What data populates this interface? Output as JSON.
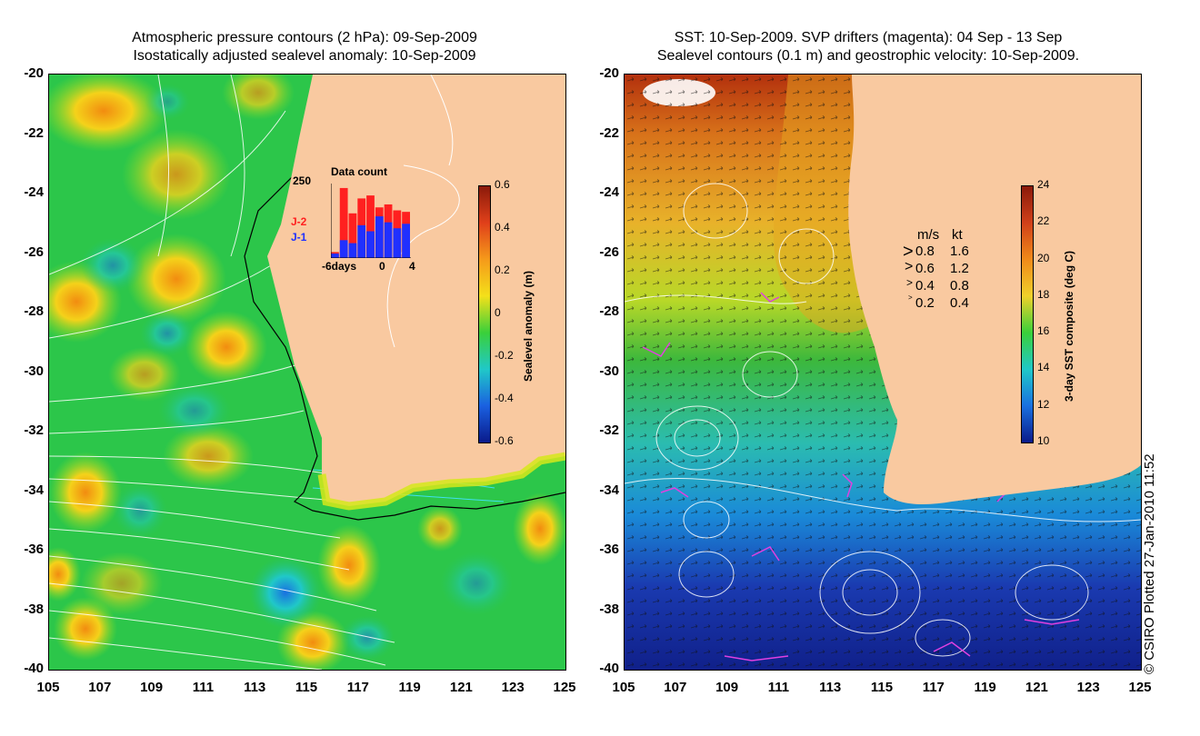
{
  "left_panel": {
    "title_line1": "Atmospheric pressure contours (2 hPa): 09-Sep-2009",
    "title_line2": "Isostatically adjusted sealevel anomaly: 10-Sep-2009",
    "y_ticks": [
      "-20",
      "-22",
      "-24",
      "-26",
      "-28",
      "-30",
      "-32",
      "-34",
      "-36",
      "-38",
      "-40"
    ],
    "x_ticks": [
      "105",
      "107",
      "109",
      "111",
      "113",
      "115",
      "117",
      "119",
      "121",
      "123",
      "125"
    ],
    "colorbar": {
      "label": "Sealevel anomaly (m)",
      "ticks": [
        "0.6",
        "0.4",
        "0.2",
        "0",
        "-0.2",
        "-0.4",
        "-0.6"
      ],
      "range": [
        -0.6,
        0.6
      ]
    },
    "data_count": {
      "title": "Data count",
      "y_max_label": "250",
      "x_labels": [
        "-6days",
        "0",
        "4"
      ],
      "series": [
        {
          "name": "J-2",
          "color": "#ff2020",
          "values": [
            20,
            235,
            150,
            200,
            210,
            170,
            180,
            160,
            155
          ]
        },
        {
          "name": "J-1",
          "color": "#2030ff",
          "values": [
            15,
            60,
            50,
            110,
            90,
            140,
            120,
            100,
            115
          ]
        }
      ]
    }
  },
  "right_panel": {
    "title_line1": "SST: 10-Sep-2009. SVP drifters (magenta): 04 Sep - 13 Sep",
    "title_line2": "Sealevel contours (0.1 m) and geostrophic velocity: 10-Sep-2009.",
    "y_ticks": [
      "-20",
      "-22",
      "-24",
      "-26",
      "-28",
      "-30",
      "-32",
      "-34",
      "-36",
      "-38",
      "-40"
    ],
    "x_ticks": [
      "105",
      "107",
      "109",
      "111",
      "113",
      "115",
      "117",
      "119",
      "121",
      "123",
      "125"
    ],
    "colorbar": {
      "label": "3-day SST composite (deg C)",
      "ticks": [
        "24",
        "22",
        "20",
        "18",
        "16",
        "14",
        "12",
        "10"
      ],
      "range": [
        10,
        24
      ]
    },
    "velocity_legend": {
      "header_ms": "m/s",
      "header_kt": "kt",
      "rows": [
        {
          "ms": "0.8",
          "kt": "1.6"
        },
        {
          "ms": "0.6",
          "kt": "1.2"
        },
        {
          "ms": "0.4",
          "kt": "0.8"
        },
        {
          "ms": "0.2",
          "kt": "0.4"
        }
      ]
    }
  },
  "copyright": "© CSIRO Plotted 27-Jan-2010 11:52",
  "colors": {
    "land": "#f9c9a0",
    "ocean_mid": "#22cc33"
  }
}
